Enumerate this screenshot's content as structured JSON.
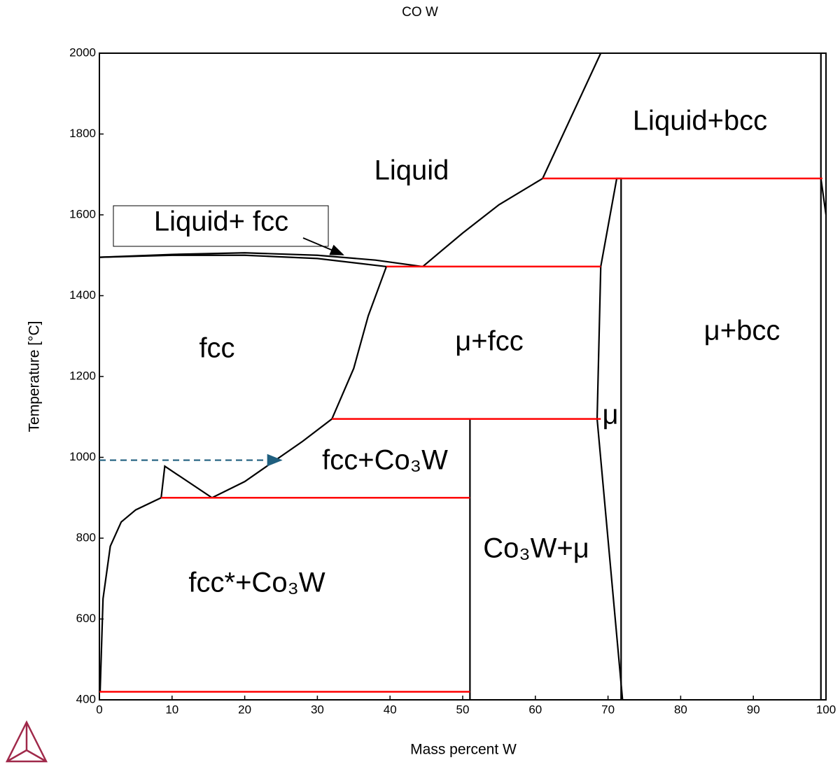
{
  "chart_data": {
    "type": "line",
    "title": "CO W",
    "xlabel": "Mass percent W",
    "ylabel": "Temperature [°C]",
    "xlim": [
      0,
      100
    ],
    "ylim": [
      400,
      2000
    ],
    "xticks": [
      0,
      10,
      20,
      30,
      40,
      50,
      60,
      70,
      80,
      90,
      100
    ],
    "yticks": [
      400,
      600,
      800,
      1000,
      1200,
      1400,
      1600,
      1800,
      2000
    ],
    "grid": false,
    "annotations": [
      "Liquid",
      "Liquid+bcc",
      "Liquid+ fcc",
      "fcc",
      "μ+fcc",
      "μ+bcc",
      "μ",
      "fcc+Co₃W",
      "Co₃W+μ",
      "fcc*+Co₃W"
    ],
    "series": [
      {
        "color": "#000000",
        "x": [
          0,
          10,
          20,
          30,
          38,
          44.5
        ],
        "values": [
          1495,
          1502,
          1506,
          1500,
          1488,
          1472
        ]
      },
      {
        "color": "#000000",
        "x": [
          0,
          10,
          20,
          30,
          39.5
        ],
        "values": [
          1495,
          1500,
          1500,
          1492,
          1472
        ]
      },
      {
        "color": "#000000",
        "x": [
          44.5,
          50,
          55,
          61
        ],
        "values": [
          1472,
          1555,
          1625,
          1690
        ]
      },
      {
        "color": "#000000",
        "x": [
          61,
          69
        ],
        "values": [
          1690,
          2000
        ]
      },
      {
        "color": "#000000",
        "x": [
          39.5,
          37,
          35,
          32,
          28,
          24,
          20,
          15.5,
          9,
          8.5,
          5,
          3,
          1.5,
          0.5,
          0.1
        ],
        "values": [
          1472,
          1350,
          1220,
          1095,
          1040,
          990,
          940,
          900,
          978,
          900,
          870,
          840,
          780,
          650,
          420
        ]
      },
      {
        "color": "#000000",
        "x": [
          51,
          51
        ],
        "values": [
          1095,
          400
        ]
      },
      {
        "color": "#000000",
        "x": [
          69,
          68.5,
          72
        ],
        "values": [
          1472,
          1095,
          400
        ]
      },
      {
        "color": "#000000",
        "x": [
          69,
          71.2,
          71.8,
          71.8
        ],
        "values": [
          1472,
          1690,
          1690,
          400
        ]
      },
      {
        "color": "#000000",
        "x": [
          99.3,
          99.3
        ],
        "values": [
          2000,
          400
        ]
      },
      {
        "color": "#000000",
        "x": [
          99.3,
          100
        ],
        "values": [
          1690,
          1600
        ]
      },
      {
        "color": "#ff0000",
        "x": [
          61,
          99.5
        ],
        "values": [
          1690,
          1690
        ]
      },
      {
        "color": "#ff0000",
        "x": [
          39.5,
          69
        ],
        "values": [
          1472,
          1472
        ]
      },
      {
        "color": "#ff0000",
        "x": [
          32,
          69
        ],
        "values": [
          1095,
          1095
        ]
      },
      {
        "color": "#ff0000",
        "x": [
          8.5,
          51
        ],
        "values": [
          900,
          900
        ]
      },
      {
        "color": "#ff0000",
        "x": [
          0,
          51
        ],
        "values": [
          420,
          420
        ]
      },
      {
        "color": "#1f5f7f",
        "dash": true,
        "x": [
          0,
          25
        ],
        "values": [
          993,
          993
        ]
      }
    ]
  }
}
